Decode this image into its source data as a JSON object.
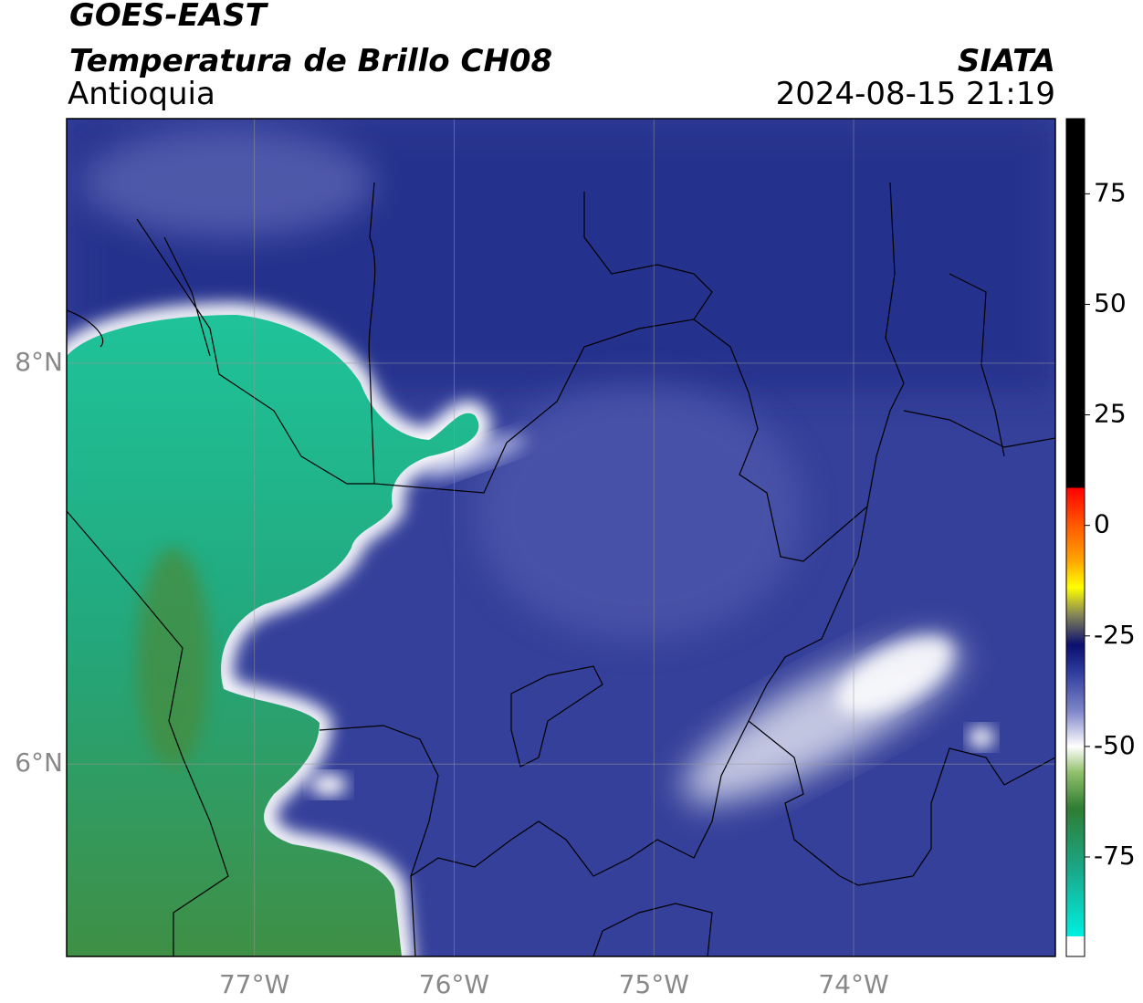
{
  "header": {
    "satellite": "GOES-EAST",
    "product": "Temperatura de Brillo CH08",
    "region": "Antioquia",
    "source": "SIATA",
    "timestamp": "2024-08-15 21:19"
  },
  "map": {
    "lon_range": [
      -77.94,
      -72.99
    ],
    "lat_range": [
      5.04,
      9.22
    ],
    "lon_ticks": [
      {
        "value": -77,
        "label": "77°W"
      },
      {
        "value": -76,
        "label": "76°W"
      },
      {
        "value": -75,
        "label": "75°W"
      },
      {
        "value": -74,
        "label": "74°W"
      }
    ],
    "lat_ticks": [
      {
        "value": 8,
        "label": "8°N"
      },
      {
        "value": 6,
        "label": "6°N"
      }
    ],
    "grid": true
  },
  "colorbar": {
    "range": [
      -97.5,
      92
    ],
    "ticks": [
      75,
      50,
      25,
      0,
      -25,
      -50,
      -75
    ],
    "stops": [
      {
        "value": 92,
        "color": "#000000"
      },
      {
        "value": 8.5,
        "color": "#000000"
      },
      {
        "value": 8.5,
        "color": "#ff0000"
      },
      {
        "value": 0,
        "color": "#ff5a00"
      },
      {
        "value": -8,
        "color": "#ffa500"
      },
      {
        "value": -14,
        "color": "#ffff00"
      },
      {
        "value": -20,
        "color": "#8a8a55"
      },
      {
        "value": -27,
        "color": "#0a0f6e"
      },
      {
        "value": -33,
        "color": "#2d3a9c"
      },
      {
        "value": -42,
        "color": "#7f86c8"
      },
      {
        "value": -50,
        "color": "#ffffff"
      },
      {
        "value": -56,
        "color": "#8fbf6a"
      },
      {
        "value": -64,
        "color": "#2e7d32"
      },
      {
        "value": -78,
        "color": "#1aa88a"
      },
      {
        "value": -93,
        "color": "#00f0e0"
      },
      {
        "value": -93,
        "color": "#ffffff"
      },
      {
        "value": -97.5,
        "color": "#ffffff"
      }
    ]
  }
}
